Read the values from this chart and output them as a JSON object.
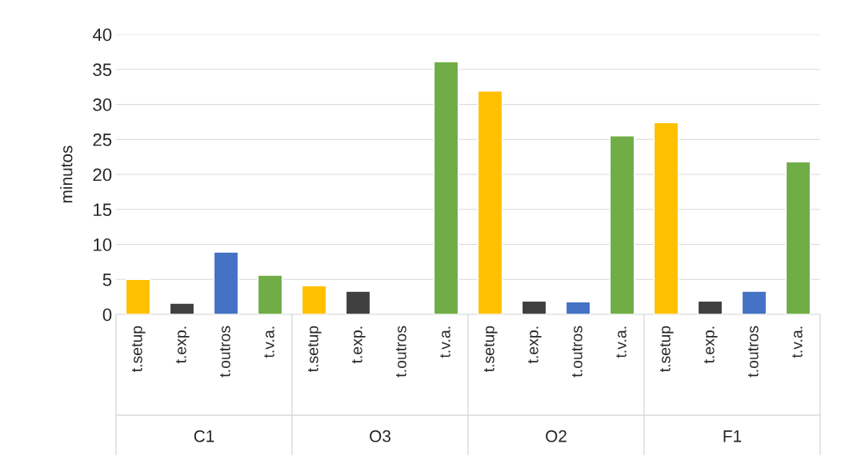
{
  "chart_data": {
    "type": "bar",
    "ylabel": "minutos",
    "categories": [
      "t.setup",
      "t.exp.",
      "t.outros",
      "t.v.a.",
      "t.setup",
      "t.exp.",
      "t.outros",
      "t.v.a.",
      "t.setup",
      "t.exp.",
      "t.outros",
      "t.v.a.",
      "t.setup",
      "t.exp.",
      "t.outros",
      "t.v.a."
    ],
    "values": [
      5.0,
      1.6,
      8.9,
      5.6,
      4.1,
      3.3,
      null,
      36.1,
      31.9,
      1.9,
      1.8,
      25.5,
      27.4,
      1.9,
      3.3,
      21.8
    ],
    "colors": [
      "#ffc000",
      "#404040",
      "#4472c4",
      "#70ad47",
      "#ffc000",
      "#404040",
      "#4472c4",
      "#70ad47",
      "#ffc000",
      "#404040",
      "#4472c4",
      "#70ad47",
      "#ffc000",
      "#404040",
      "#4472c4",
      "#70ad47"
    ],
    "annotations": [
      "C1",
      "O3",
      "O2",
      "F1"
    ],
    "ylim": [
      0,
      40
    ],
    "yticks": [
      0,
      5,
      10,
      15,
      20,
      25,
      30,
      35,
      40
    ],
    "grid": "y"
  }
}
